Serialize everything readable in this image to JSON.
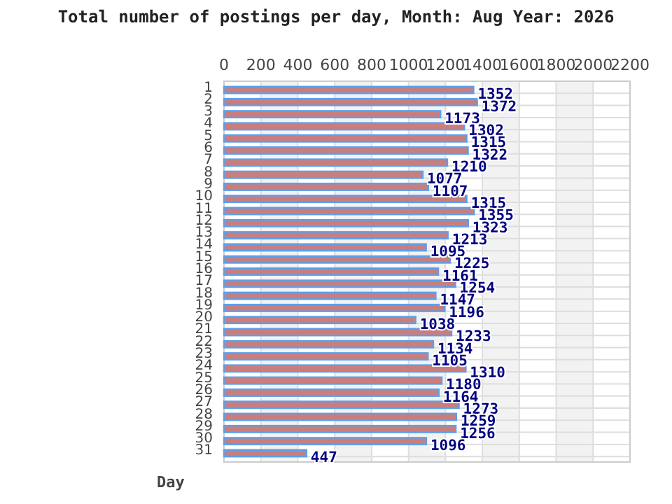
{
  "chart_data": {
    "type": "bar",
    "orientation": "horizontal",
    "title": "Total number of postings per day, Month: Aug  Year: 2026",
    "ylabel": "Day",
    "categories": [
      "1",
      "2",
      "3",
      "4",
      "5",
      "6",
      "7",
      "8",
      "9",
      "10",
      "11",
      "12",
      "13",
      "14",
      "15",
      "16",
      "17",
      "18",
      "19",
      "20",
      "21",
      "22",
      "23",
      "24",
      "25",
      "26",
      "27",
      "28",
      "29",
      "30",
      "31"
    ],
    "values": [
      1352,
      1372,
      1173,
      1302,
      1315,
      1322,
      1210,
      1077,
      1107,
      1315,
      1355,
      1323,
      1213,
      1095,
      1225,
      1161,
      1254,
      1147,
      1196,
      1038,
      1233,
      1134,
      1105,
      1310,
      1180,
      1164,
      1273,
      1259,
      1256,
      1096,
      447
    ],
    "color": "#c97e7e",
    "xlim": [
      0,
      2200
    ],
    "xticks": [
      0,
      200,
      400,
      600,
      800,
      1000,
      1200,
      1400,
      1600,
      1800,
      2000,
      2200
    ],
    "grid": true,
    "data_labels": true
  }
}
